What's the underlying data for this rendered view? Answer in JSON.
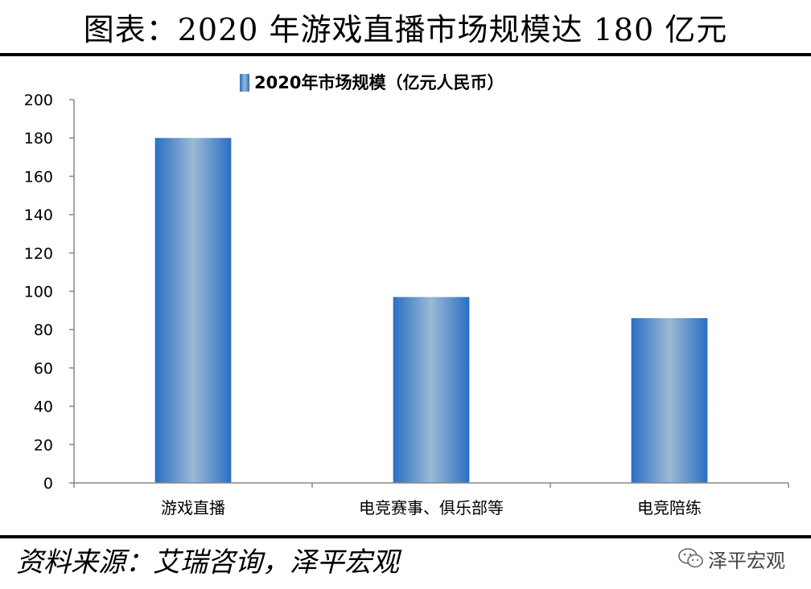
{
  "header": {
    "title": "图表：2020 年游戏直播市场规模达 180 亿元"
  },
  "footer": {
    "source": "资料来源：艾瑞咨询，泽平宏观",
    "brand": "泽平宏观",
    "brand_icon": "wechat-icon"
  },
  "chart_data": {
    "type": "bar",
    "categories": [
      "游戏直播",
      "电竞赛事、俱乐部等",
      "电竞陪练"
    ],
    "series": [
      {
        "name": "2020年市场规模（亿元人民币）",
        "values": [
          180,
          97,
          86
        ]
      }
    ],
    "ylim": [
      0,
      200
    ],
    "yticks": [
      0,
      20,
      40,
      60,
      80,
      100,
      120,
      140,
      160,
      180,
      200
    ],
    "legend": "top-center",
    "grid": false,
    "colors": {
      "bar_edge": "#2a6fc4",
      "bar_center": "#9bb9d4"
    }
  }
}
